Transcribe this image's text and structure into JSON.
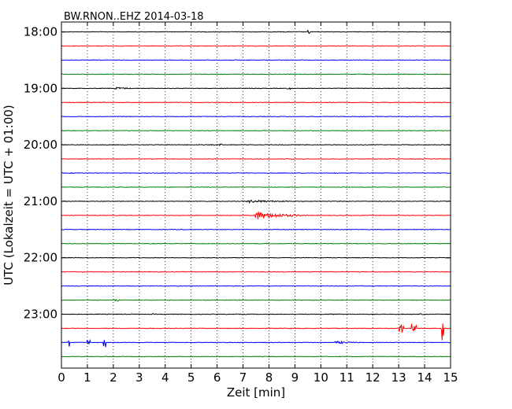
{
  "chart_data": {
    "type": "line",
    "title": "BW.RNON..EHZ 2014-03-18",
    "xlabel": "Zeit  [min]",
    "ylabel": "UTC (Lokalzeit = UTC + 01:00)",
    "xlim": [
      0,
      15
    ],
    "x_ticks": [
      0,
      1,
      2,
      3,
      4,
      5,
      6,
      7,
      8,
      9,
      10,
      11,
      12,
      13,
      14,
      15
    ],
    "y_tick_labels": [
      "18:00",
      "19:00",
      "20:00",
      "21:00",
      "22:00",
      "23:00"
    ],
    "grid": "vertical-dotted",
    "trace_colors": [
      "#000000",
      "#ff0000",
      "#0000ff",
      "#008000"
    ],
    "rows": [
      {
        "time": "18:00",
        "events": [
          {
            "at": 9.5,
            "dur": 0.1,
            "amp": 0.5
          }
        ]
      },
      {
        "time": "18:15",
        "events": []
      },
      {
        "time": "18:30",
        "events": []
      },
      {
        "time": "18:45",
        "events": []
      },
      {
        "time": "19:00",
        "events": [
          {
            "at": 2.0,
            "dur": 1.2,
            "amp": 0.3
          },
          {
            "at": 8.7,
            "dur": 0.2,
            "amp": 0.2
          }
        ]
      },
      {
        "time": "19:15",
        "events": []
      },
      {
        "time": "19:30",
        "events": []
      },
      {
        "time": "19:45",
        "events": []
      },
      {
        "time": "20:00",
        "events": [
          {
            "at": 6.1,
            "dur": 0.1,
            "amp": 0.2
          }
        ]
      },
      {
        "time": "20:15",
        "events": []
      },
      {
        "time": "20:30",
        "events": [
          {
            "at": 10.5,
            "dur": 0.1,
            "amp": 0.2
          }
        ]
      },
      {
        "time": "20:45",
        "events": []
      },
      {
        "time": "21:00",
        "events": [
          {
            "at": 7.1,
            "dur": 2.5,
            "amp": 0.35
          }
        ]
      },
      {
        "time": "21:15",
        "events": [
          {
            "at": 7.4,
            "dur": 2.1,
            "amp": 1.0
          }
        ]
      },
      {
        "time": "21:30",
        "events": [
          {
            "at": 4.5,
            "dur": 0.4,
            "amp": 0.2
          }
        ]
      },
      {
        "time": "21:45",
        "events": []
      },
      {
        "time": "22:00",
        "events": []
      },
      {
        "time": "22:15",
        "events": []
      },
      {
        "time": "22:30",
        "events": []
      },
      {
        "time": "22:45",
        "events": [
          {
            "at": 2.0,
            "dur": 0.2,
            "amp": 0.3
          }
        ]
      },
      {
        "time": "23:00",
        "events": [
          {
            "at": 3.5,
            "dur": 0.3,
            "amp": 0.2
          },
          {
            "at": 10.3,
            "dur": 0.8,
            "amp": 0.2
          },
          {
            "at": 13.8,
            "dur": 0.3,
            "amp": 0.2
          }
        ]
      },
      {
        "time": "23:15",
        "events": [
          {
            "at": 13.0,
            "dur": 0.2,
            "amp": 1.0
          },
          {
            "at": 13.5,
            "dur": 0.2,
            "amp": 1.0
          },
          {
            "at": 14.65,
            "dur": 0.1,
            "amp": 4.0
          }
        ]
      },
      {
        "time": "23:30",
        "events": [
          {
            "at": 0.2,
            "dur": 0.1,
            "amp": 1.0
          },
          {
            "at": 1.0,
            "dur": 0.1,
            "amp": 1.0
          },
          {
            "at": 1.6,
            "dur": 0.1,
            "amp": 1.0
          },
          {
            "at": 10.5,
            "dur": 1.5,
            "amp": 0.3
          }
        ]
      },
      {
        "time": "23:45",
        "events": []
      }
    ]
  }
}
